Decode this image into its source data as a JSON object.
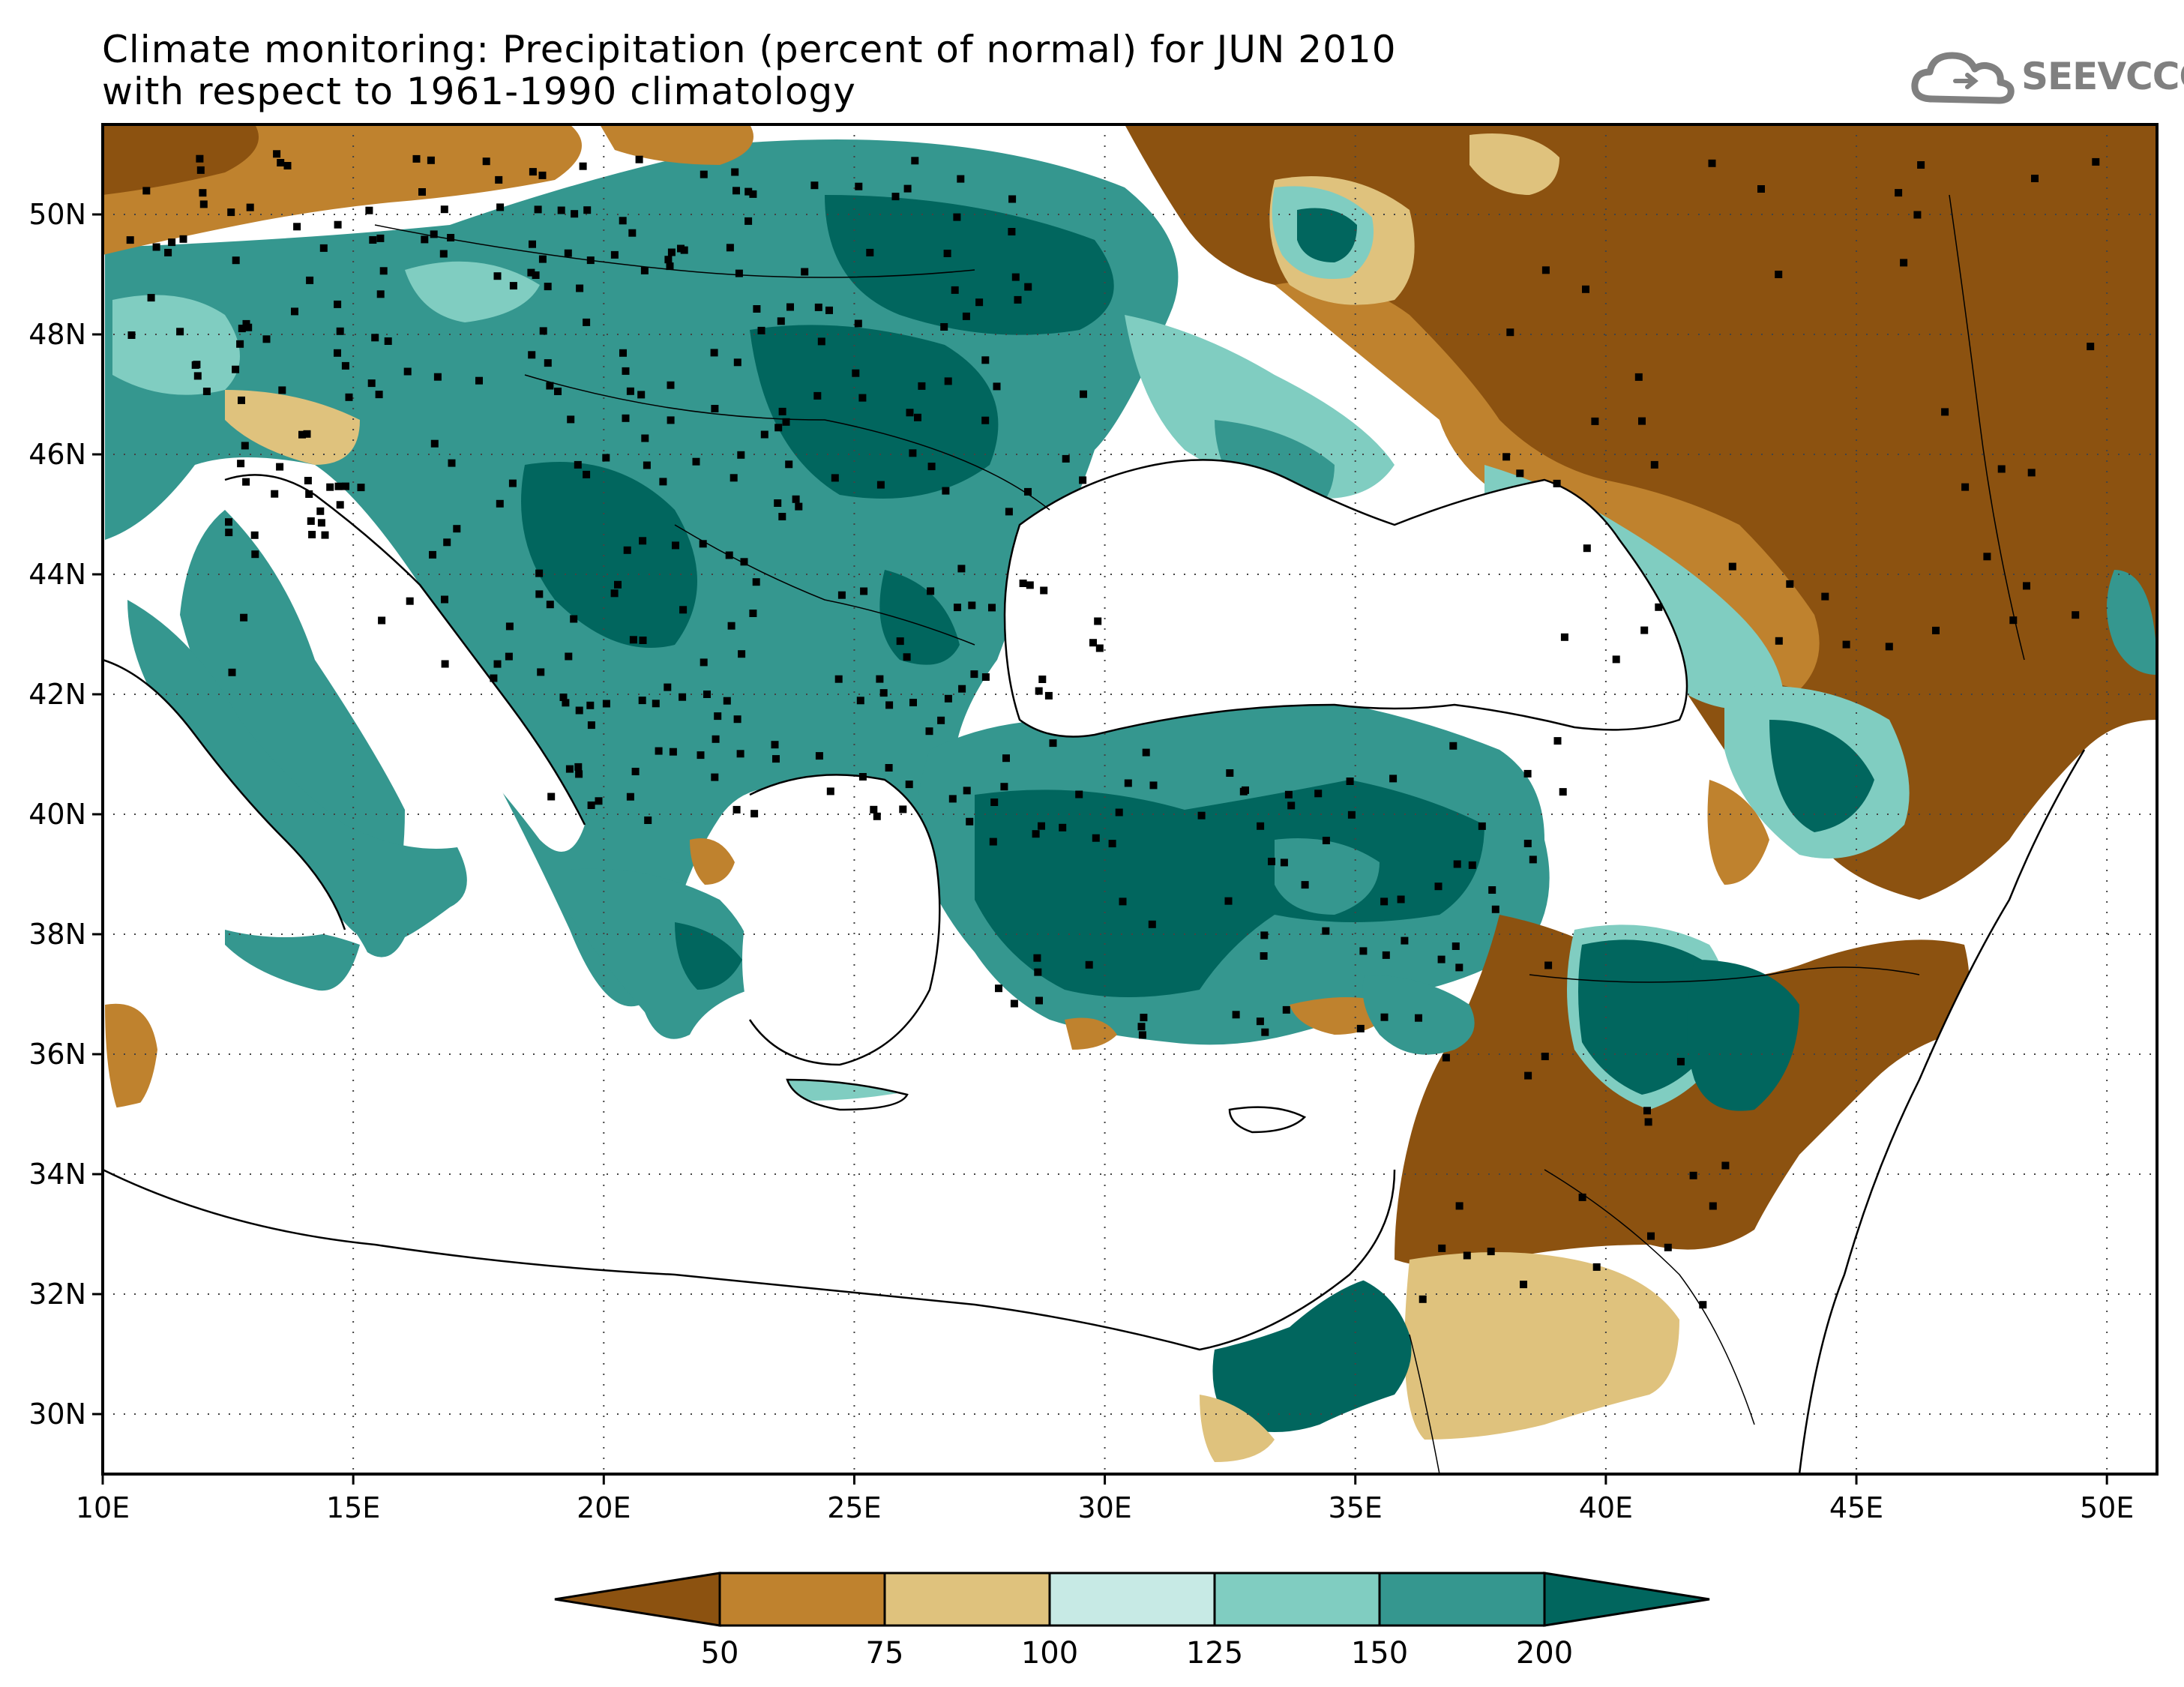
{
  "header": {
    "title_line1": "Climate monitoring: Precipitation (percent of normal) for JUN 2010",
    "title_line2": "with respect to 1961-1990 climatology",
    "logo_text": "SEEVCCC"
  },
  "map": {
    "lon_range": [
      10,
      51
    ],
    "lat_range": [
      29,
      51.5
    ],
    "lon_ticks": [
      {
        "value": 10,
        "label": "10E"
      },
      {
        "value": 15,
        "label": "15E"
      },
      {
        "value": 20,
        "label": "20E"
      },
      {
        "value": 25,
        "label": "25E"
      },
      {
        "value": 30,
        "label": "30E"
      },
      {
        "value": 35,
        "label": "35E"
      },
      {
        "value": 40,
        "label": "40E"
      },
      {
        "value": 45,
        "label": "45E"
      },
      {
        "value": 50,
        "label": "50E"
      }
    ],
    "lat_ticks": [
      {
        "value": 30,
        "label": "30N"
      },
      {
        "value": 32,
        "label": "32N"
      },
      {
        "value": 34,
        "label": "34N"
      },
      {
        "value": 36,
        "label": "36N"
      },
      {
        "value": 38,
        "label": "38N"
      },
      {
        "value": 40,
        "label": "40N"
      },
      {
        "value": 42,
        "label": "42N"
      },
      {
        "value": 44,
        "label": "44N"
      },
      {
        "value": 46,
        "label": "46N"
      },
      {
        "value": 48,
        "label": "48N"
      },
      {
        "value": 50,
        "label": "50N"
      }
    ],
    "gridlines": "dotted"
  },
  "colorbar": {
    "bins": [
      {
        "color": "#8c5210",
        "label": "50"
      },
      {
        "color": "#bf822e",
        "label": "75"
      },
      {
        "color": "#dfc27d",
        "label": "100"
      },
      {
        "color": "#c7eae5",
        "label": "125"
      },
      {
        "color": "#80cdc1",
        "label": "150"
      },
      {
        "color": "#35978f",
        "label": "200"
      },
      {
        "color": "#01665e",
        "label": ""
      }
    ]
  }
}
